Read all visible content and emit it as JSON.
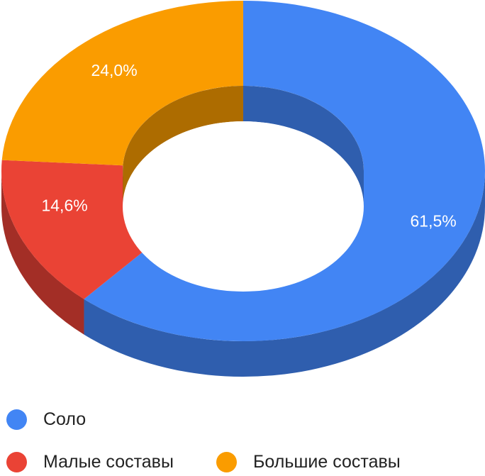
{
  "chart_data": {
    "type": "pie",
    "variant": "3d-donut",
    "slices": [
      {
        "name": "Соло",
        "value": 61.5,
        "label": "61,5%",
        "color": "#4285f4",
        "side_color": "#2f5eae"
      },
      {
        "name": "Малые составы",
        "value": 14.6,
        "label": "14,6%",
        "color": "#ea4335",
        "side_color": "#a32e26"
      },
      {
        "name": "Большие составы",
        "value": 24.0,
        "label": "24,0%",
        "color": "#fa9c00",
        "side_color": "#ad6c00"
      }
    ],
    "legend_position": "bottom"
  }
}
